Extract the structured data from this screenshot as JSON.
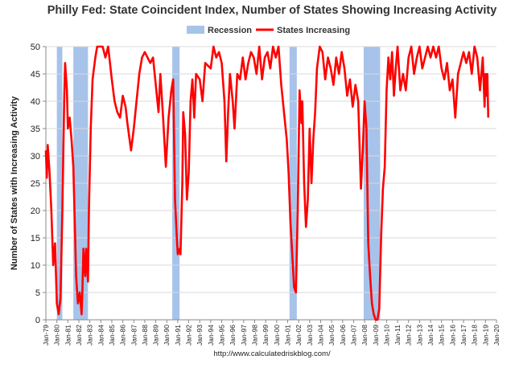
{
  "chart_data": {
    "type": "line",
    "title": "Philly Fed: State Coincident Index, Number of States Showing Increasing Activity",
    "ylabel": "Number of States with Increasing Activity",
    "source": "http://www.calculatedriskblog.com/",
    "ylim": [
      0,
      50
    ],
    "yticks": [
      0,
      5,
      10,
      15,
      20,
      25,
      30,
      35,
      40,
      45,
      50
    ],
    "grid": true,
    "xlim": [
      "1979-01",
      "2020-01"
    ],
    "xticks": [
      {
        "value": "1979-01",
        "label": "Jan-79"
      },
      {
        "value": "1980-01",
        "label": "Jan-80"
      },
      {
        "value": "1981-01",
        "label": "Jan-81"
      },
      {
        "value": "1982-01",
        "label": "Jan-82"
      },
      {
        "value": "1983-01",
        "label": "Jan-83"
      },
      {
        "value": "1984-01",
        "label": "Jan-84"
      },
      {
        "value": "1985-01",
        "label": "Jan-85"
      },
      {
        "value": "1986-01",
        "label": "Jan-86"
      },
      {
        "value": "1987-01",
        "label": "Jan-87"
      },
      {
        "value": "1988-01",
        "label": "Jan-88"
      },
      {
        "value": "1989-01",
        "label": "Jan-89"
      },
      {
        "value": "1990-01",
        "label": "Jan-90"
      },
      {
        "value": "1991-01",
        "label": "Jan-91"
      },
      {
        "value": "1992-01",
        "label": "Jan-92"
      },
      {
        "value": "1993-01",
        "label": "Jan-93"
      },
      {
        "value": "1994-01",
        "label": "Jan-94"
      },
      {
        "value": "1995-01",
        "label": "Jan-95"
      },
      {
        "value": "1996-01",
        "label": "Jan-96"
      },
      {
        "value": "1997-01",
        "label": "Jan-97"
      },
      {
        "value": "1998-01",
        "label": "Jan-98"
      },
      {
        "value": "1999-01",
        "label": "Jan-99"
      },
      {
        "value": "2000-01",
        "label": "Jan-00"
      },
      {
        "value": "2001-01",
        "label": "Jan-01"
      },
      {
        "value": "2002-01",
        "label": "Jan-02"
      },
      {
        "value": "2003-01",
        "label": "Jan-03"
      },
      {
        "value": "2004-01",
        "label": "Jan-04"
      },
      {
        "value": "2005-01",
        "label": "Jan-05"
      },
      {
        "value": "2006-01",
        "label": "Jan-06"
      },
      {
        "value": "2007-01",
        "label": "Jan-07"
      },
      {
        "value": "2008-01",
        "label": "Jan-08"
      },
      {
        "value": "2009-01",
        "label": "Jan-09"
      },
      {
        "value": "2010-01",
        "label": "Jan-10"
      },
      {
        "value": "2011-01",
        "label": "Jan-11"
      },
      {
        "value": "2012-01",
        "label": "Jan-12"
      },
      {
        "value": "2013-01",
        "label": "Jan-13"
      },
      {
        "value": "2014-01",
        "label": "Jan-14"
      },
      {
        "value": "2015-01",
        "label": "Jan-15"
      },
      {
        "value": "2016-01",
        "label": "Jan-16"
      },
      {
        "value": "2017-01",
        "label": "Jan-17"
      },
      {
        "value": "2018-01",
        "label": "Jan-18"
      },
      {
        "value": "2019-01",
        "label": "Jan-19"
      },
      {
        "value": "2020-01",
        "label": "Jan-20"
      }
    ],
    "recessions": {
      "name": "Recession",
      "color": "#a7c3ea",
      "periods": [
        {
          "start": "1980-01",
          "end": "1980-07"
        },
        {
          "start": "1981-07",
          "end": "1982-11"
        },
        {
          "start": "1990-07",
          "end": "1991-03"
        },
        {
          "start": "2001-03",
          "end": "2001-11"
        },
        {
          "start": "2007-12",
          "end": "2009-06"
        }
      ]
    },
    "x": [
      "1979-01",
      "1979-02",
      "1979-03",
      "1979-05",
      "1979-07",
      "1979-09",
      "1979-11",
      "1980-01",
      "1980-03",
      "1980-05",
      "1980-07",
      "1980-09",
      "1980-10",
      "1980-12",
      "1981-01",
      "1981-03",
      "1981-05",
      "1981-07",
      "1981-09",
      "1981-10",
      "1981-12",
      "1982-02",
      "1982-04",
      "1982-05",
      "1982-06",
      "1982-08",
      "1982-09",
      "1982-11",
      "1982-12",
      "1983-02",
      "1983-04",
      "1983-07",
      "1983-09",
      "1984-03",
      "1984-06",
      "1984-09",
      "1985-01",
      "1985-04",
      "1985-07",
      "1985-10",
      "1986-01",
      "1986-04",
      "1986-06",
      "1986-10",
      "1987-01",
      "1987-04",
      "1987-07",
      "1987-10",
      "1988-01",
      "1988-04",
      "1988-07",
      "1988-10",
      "1989-01",
      "1989-04",
      "1989-06",
      "1989-09",
      "1989-12",
      "1990-03",
      "1990-06",
      "1990-08",
      "1990-10",
      "1990-12",
      "1991-01",
      "1991-03",
      "1991-04",
      "1991-06",
      "1991-07",
      "1991-09",
      "1991-11",
      "1992-01",
      "1992-03",
      "1992-05",
      "1992-07",
      "1992-09",
      "1993-01",
      "1993-04",
      "1993-07",
      "1994-01",
      "1994-04",
      "1994-07",
      "1994-10",
      "1995-01",
      "1995-04",
      "1995-06",
      "1995-08",
      "1995-10",
      "1996-01",
      "1996-03",
      "1996-06",
      "1996-09",
      "1996-12",
      "1997-03",
      "1997-06",
      "1997-09",
      "1997-12",
      "1998-03",
      "1998-06",
      "1998-09",
      "1998-12",
      "1999-03",
      "1999-06",
      "1999-09",
      "1999-12",
      "2000-03",
      "2000-06",
      "2000-09",
      "2000-12",
      "2001-02",
      "2001-04",
      "2001-06",
      "2001-08",
      "2001-10",
      "2001-12",
      "2002-02",
      "2002-04",
      "2002-05",
      "2002-07",
      "2002-09",
      "2002-11",
      "2003-01",
      "2003-03",
      "2003-05",
      "2003-07",
      "2003-09",
      "2003-12",
      "2004-03",
      "2004-06",
      "2004-09",
      "2004-12",
      "2005-03",
      "2005-06",
      "2005-09",
      "2005-12",
      "2006-03",
      "2006-06",
      "2006-09",
      "2006-12",
      "2007-03",
      "2007-06",
      "2007-09",
      "2007-11",
      "2008-01",
      "2008-03",
      "2008-05",
      "2008-07",
      "2008-09",
      "2008-11",
      "2009-01",
      "2009-03",
      "2009-05",
      "2009-07",
      "2009-09",
      "2009-11",
      "2010-01",
      "2010-03",
      "2010-05",
      "2010-07",
      "2010-09",
      "2010-11",
      "2011-01",
      "2011-04",
      "2011-07",
      "2011-10",
      "2012-01",
      "2012-04",
      "2012-07",
      "2012-10",
      "2013-01",
      "2013-04",
      "2013-07",
      "2013-10",
      "2014-01",
      "2014-04",
      "2014-07",
      "2014-10",
      "2015-01",
      "2015-04",
      "2015-07",
      "2015-10",
      "2016-01",
      "2016-04",
      "2016-07",
      "2016-10",
      "2017-01",
      "2017-04",
      "2017-07",
      "2017-10",
      "2018-01",
      "2018-04",
      "2018-07",
      "2018-10",
      "2018-12",
      "2019-01",
      "2019-02",
      "2019-03",
      "2019-04"
    ],
    "series": [
      {
        "name": "States Increasing",
        "color": "#ff0000",
        "values": [
          31,
          26,
          32,
          27,
          20,
          10,
          14,
          3,
          1,
          4,
          20,
          40,
          47,
          42,
          35,
          37,
          33,
          28,
          15,
          8,
          3,
          5,
          1,
          6,
          13,
          8,
          13,
          7,
          20,
          35,
          44,
          48,
          50,
          50,
          48,
          50,
          44,
          40,
          38,
          37,
          41,
          39,
          36,
          31,
          35,
          40,
          45,
          48,
          49,
          48,
          47,
          48,
          43,
          38,
          45,
          37,
          28,
          37,
          42,
          44,
          22,
          15,
          12,
          13,
          12,
          25,
          38,
          34,
          22,
          27,
          40,
          44,
          37,
          45,
          44,
          40,
          47,
          46,
          50,
          48,
          49,
          47,
          40,
          29,
          38,
          45,
          40,
          35,
          45,
          44,
          48,
          44,
          47,
          49,
          48,
          45,
          50,
          44,
          48,
          49,
          46,
          50,
          48,
          50,
          43,
          38,
          33,
          27,
          18,
          12,
          6,
          5,
          20,
          42,
          36,
          40,
          25,
          17,
          22,
          35,
          25,
          33,
          38,
          46,
          50,
          49,
          44,
          48,
          46,
          43,
          48,
          45,
          49,
          46,
          41,
          44,
          39,
          43,
          40,
          24,
          31,
          40,
          35,
          14,
          8,
          3,
          1,
          0,
          0,
          2,
          15,
          24,
          28,
          42,
          48,
          44,
          49,
          41,
          46,
          50,
          42,
          45,
          42,
          48,
          50,
          45,
          48,
          50,
          46,
          48,
          50,
          48,
          50,
          48,
          50,
          46,
          44,
          47,
          42,
          44,
          37,
          45,
          47,
          49,
          47,
          49,
          45,
          50,
          48,
          42,
          48,
          39,
          45,
          41,
          45,
          37
        ]
      }
    ]
  }
}
